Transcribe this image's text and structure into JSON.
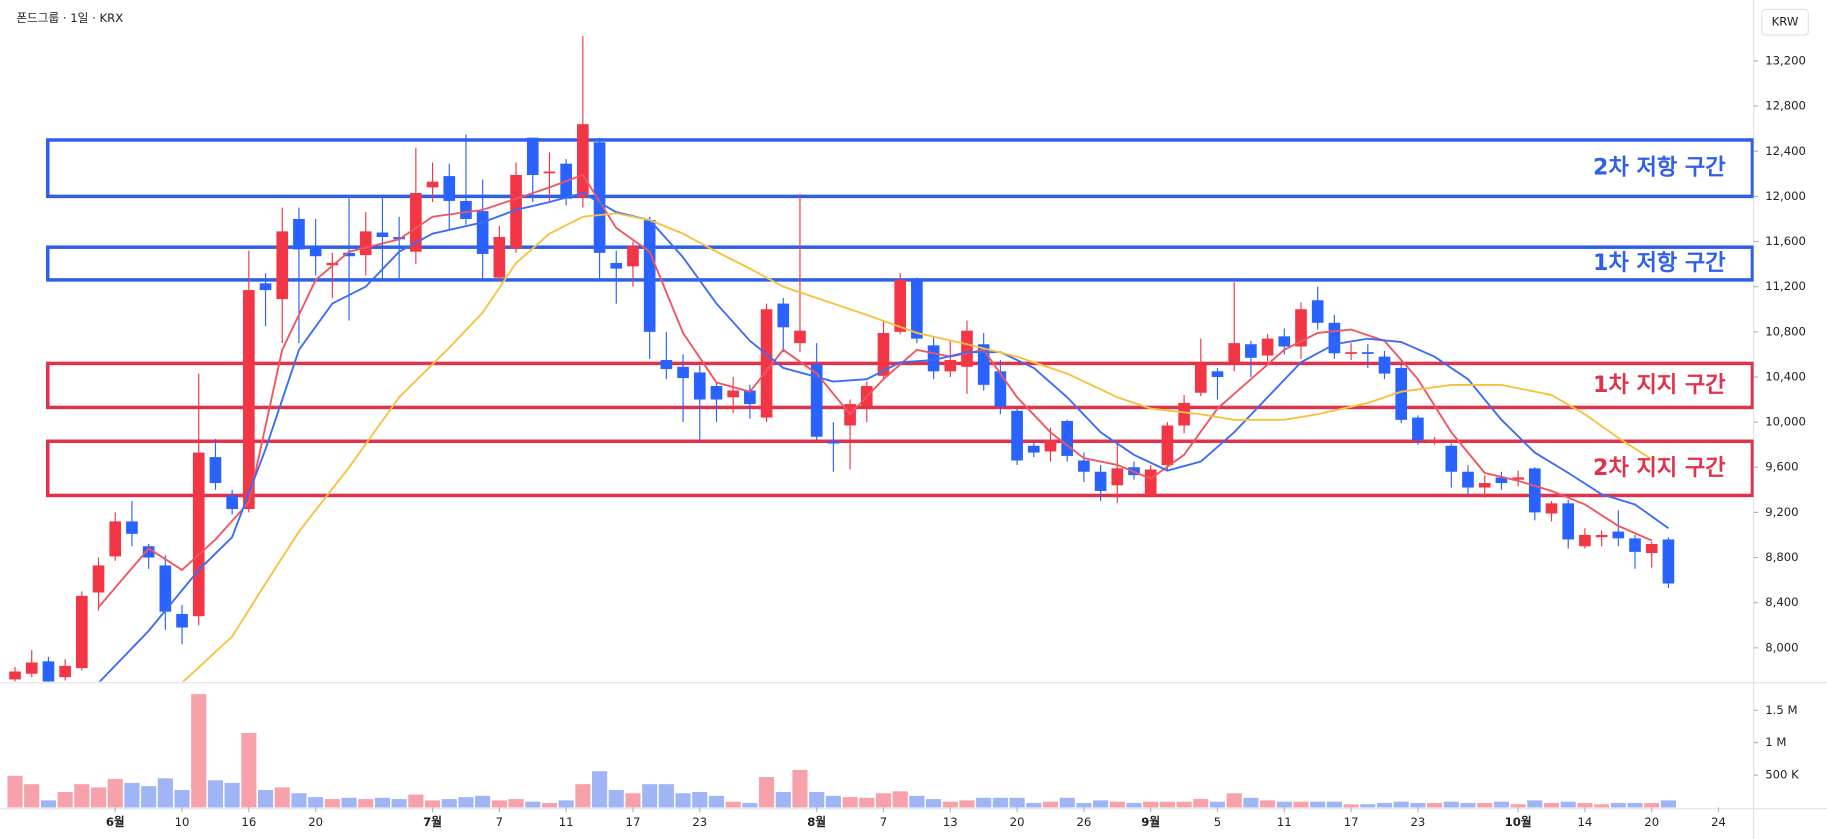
{
  "header": {
    "title": "폰드그룹 · 1일 · KRX",
    "currency": "KRW"
  },
  "chart_data": {
    "type": "candlestick",
    "up_color": "#f23645",
    "down_color": "#2962ff",
    "xlim": [
      -0.9,
      104.1
    ],
    "xticks": [
      {
        "value": 6,
        "label": "6월"
      },
      {
        "value": 10,
        "label": "10"
      },
      {
        "value": 14,
        "label": "16"
      },
      {
        "value": 18,
        "label": "20"
      },
      {
        "value": 25,
        "label": "7월"
      },
      {
        "value": 29,
        "label": "7"
      },
      {
        "value": 33,
        "label": "11"
      },
      {
        "value": 37,
        "label": "17"
      },
      {
        "value": 41,
        "label": "23"
      },
      {
        "value": 48,
        "label": "8월"
      },
      {
        "value": 52,
        "label": "7"
      },
      {
        "value": 56,
        "label": "13"
      },
      {
        "value": 60,
        "label": "20"
      },
      {
        "value": 64,
        "label": "26"
      },
      {
        "value": 68,
        "label": "9월"
      },
      {
        "value": 72,
        "label": "5"
      },
      {
        "value": 76,
        "label": "11"
      },
      {
        "value": 80,
        "label": "17"
      },
      {
        "value": 84,
        "label": "23"
      },
      {
        "value": 90,
        "label": "10월"
      },
      {
        "value": 94,
        "label": "14"
      },
      {
        "value": 98,
        "label": "20"
      },
      {
        "value": 102,
        "label": "24"
      }
    ],
    "ylim": [
      7700,
      13740
    ],
    "yticks": [
      {
        "value": 8000,
        "label": "8,000"
      },
      {
        "value": 8400,
        "label": "8,400"
      },
      {
        "value": 8800,
        "label": "8,800"
      },
      {
        "value": 9200,
        "label": "9,200"
      },
      {
        "value": 9600,
        "label": "9,600"
      },
      {
        "value": 10000,
        "label": "10,000"
      },
      {
        "value": 10400,
        "label": "10,400"
      },
      {
        "value": 10800,
        "label": "10,800"
      },
      {
        "value": 11200,
        "label": "11,200"
      },
      {
        "value": 11600,
        "label": "11,600"
      },
      {
        "value": 12000,
        "label": "12,000"
      },
      {
        "value": 12400,
        "label": "12,400"
      },
      {
        "value": 12800,
        "label": "12,800"
      },
      {
        "value": 13200,
        "label": "13,200"
      }
    ],
    "open": [
      7720,
      7770,
      7880,
      7740,
      7820,
      8490,
      8810,
      9120,
      8900,
      8730,
      8300,
      8280,
      9690,
      9350,
      9230,
      11230,
      11090,
      11800,
      11560,
      11390,
      11500,
      11480,
      11680,
      11640,
      11510,
      12080,
      12180,
      11960,
      11870,
      11280,
      11540,
      12520,
      12210,
      12290,
      11990,
      12480,
      11410,
      11380,
      11790,
      10550,
      10490,
      10440,
      10320,
      10220,
      10280,
      10040,
      11050,
      10700,
      10510,
      9830,
      9970,
      10140,
      10410,
      10800,
      11260,
      10680,
      10450,
      10490,
      10690,
      10450,
      10100,
      9790,
      9740,
      10010,
      9660,
      9560,
      9440,
      9600,
      9350,
      9620,
      9970,
      10260,
      10450,
      10530,
      10690,
      10590,
      10760,
      10670,
      11080,
      10880,
      10610,
      10620,
      10580,
      10480,
      10040,
      9830,
      9790,
      9560,
      9420,
      9510,
      9490,
      9590,
      9190,
      9280,
      8900,
      8980,
      9030,
      8970,
      8840,
      8960
    ],
    "high": [
      7830,
      7980,
      7920,
      7900,
      8500,
      8800,
      9200,
      9300,
      8920,
      8820,
      8380,
      10430,
      9850,
      9400,
      11520,
      11320,
      11900,
      11900,
      11800,
      11500,
      11980,
      11860,
      11990,
      11820,
      12430,
      12300,
      12290,
      12550,
      12150,
      11740,
      12300,
      12520,
      12390,
      12330,
      13420,
      12520,
      11520,
      11600,
      11820,
      10800,
      10600,
      10500,
      10360,
      10400,
      10330,
      11050,
      11100,
      12020,
      10700,
      10000,
      10200,
      10360,
      10900,
      11320,
      11280,
      10760,
      10720,
      10900,
      10790,
      10550,
      10120,
      9830,
      9950,
      10020,
      9730,
      9620,
      9810,
      9650,
      9620,
      10000,
      10240,
      10740,
      10480,
      11240,
      10720,
      10780,
      10830,
      11060,
      11200,
      10950,
      10700,
      10690,
      10630,
      10510,
      10060,
      9870,
      9810,
      9620,
      9530,
      9560,
      9570,
      9600,
      9300,
      9310,
      9060,
      9040,
      9220,
      9000,
      8940,
      8980
    ],
    "low": [
      7700,
      7740,
      7690,
      7710,
      7800,
      8330,
      8770,
      8900,
      8700,
      8160,
      8030,
      8200,
      9400,
      9180,
      9200,
      10850,
      10700,
      10700,
      11300,
      11100,
      10900,
      11300,
      11250,
      11270,
      11400,
      11950,
      11700,
      11750,
      11250,
      11250,
      11500,
      11950,
      11960,
      11920,
      11900,
      11270,
      11050,
      11200,
      10560,
      10380,
      10000,
      9840,
      10000,
      10080,
      10030,
      10000,
      10620,
      10620,
      9840,
      9560,
      9580,
      10000,
      10380,
      10780,
      10700,
      10380,
      10400,
      10250,
      10280,
      10070,
      9620,
      9690,
      9650,
      9650,
      9470,
      9300,
      9280,
      9490,
      9340,
      9570,
      9900,
      10230,
      10200,
      10450,
      10400,
      10540,
      10600,
      10560,
      10820,
      10560,
      10550,
      10480,
      10380,
      9990,
      9800,
      9800,
      9420,
      9360,
      9330,
      9400,
      9430,
      9130,
      9120,
      8880,
      8880,
      8900,
      8900,
      8700,
      8710,
      8530
    ],
    "close": [
      7790,
      7870,
      7700,
      7840,
      8460,
      8730,
      9120,
      9010,
      8800,
      8320,
      8180,
      9730,
      9460,
      9230,
      11170,
      11170,
      11690,
      11530,
      11470,
      11410,
      11470,
      11690,
      11640,
      11620,
      12030,
      12130,
      11960,
      11800,
      11490,
      11640,
      12190,
      12190,
      12220,
      11980,
      12640,
      11500,
      11360,
      11560,
      10800,
      10470,
      10390,
      10200,
      10200,
      10280,
      10160,
      11000,
      10840,
      10810,
      9870,
      9810,
      10160,
      10320,
      10790,
      11260,
      10740,
      10450,
      10550,
      10810,
      10330,
      10140,
      9660,
      9730,
      9840,
      9700,
      9560,
      9390,
      9590,
      9530,
      9580,
      9970,
      10170,
      10510,
      10400,
      10700,
      10570,
      10740,
      10670,
      11000,
      10880,
      10610,
      10620,
      10610,
      10430,
      10020,
      9840,
      9840,
      9560,
      9420,
      9460,
      9460,
      9510,
      9200,
      9280,
      8960,
      9000,
      9000,
      8970,
      8850,
      8920,
      8570
    ],
    "moving_averages": [
      {
        "color": "#f05560",
        "x": [
          5,
          8,
          10,
          12,
          14,
          16,
          18,
          20,
          23,
          25,
          28,
          30,
          32,
          34,
          36,
          38,
          40,
          42,
          44,
          46,
          48,
          50,
          52,
          54,
          56,
          58,
          60,
          62,
          64,
          66,
          68,
          70,
          72,
          74,
          76,
          78,
          80,
          82,
          84,
          86,
          88,
          90,
          92,
          94,
          96,
          98
        ],
        "values": [
          8360,
          8880,
          8690,
          8960,
          9290,
          10640,
          11260,
          11510,
          11620,
          11820,
          11880,
          11980,
          12080,
          12190,
          11720,
          11510,
          10790,
          10350,
          10270,
          10640,
          10430,
          10070,
          10380,
          10640,
          10580,
          10640,
          10220,
          9910,
          9680,
          9620,
          9500,
          9710,
          10120,
          10380,
          10640,
          10790,
          10820,
          10720,
          10380,
          9910,
          9550,
          9480,
          9390,
          9270,
          9080,
          8950
        ]
      },
      {
        "color": "#3a6cf4",
        "x": [
          5,
          8,
          11,
          13,
          15,
          17,
          19,
          21,
          23,
          25,
          28,
          30,
          32,
          34,
          36,
          38,
          40,
          42,
          44,
          46,
          49,
          51,
          53,
          55,
          57,
          59,
          61,
          63,
          65,
          67,
          69,
          71,
          73,
          75,
          77,
          79,
          81,
          83,
          85,
          87,
          89,
          91,
          93,
          95,
          97,
          99
        ],
        "values": [
          7690,
          8150,
          8690,
          8980,
          9760,
          10640,
          11050,
          11200,
          11510,
          11670,
          11770,
          11880,
          11950,
          12030,
          11860,
          11790,
          11460,
          11050,
          10720,
          10480,
          10360,
          10380,
          10530,
          10550,
          10620,
          10620,
          10480,
          10220,
          9910,
          9710,
          9570,
          9650,
          9910,
          10220,
          10530,
          10690,
          10740,
          10710,
          10580,
          10380,
          10020,
          9730,
          9550,
          9360,
          9270,
          9060
        ]
      },
      {
        "color": "#f7c13d",
        "x": [
          10,
          13,
          15,
          17,
          20,
          23,
          26,
          28,
          30,
          32,
          34,
          36,
          38,
          40,
          42,
          44,
          46,
          48,
          51,
          54,
          57,
          60,
          63,
          66,
          68,
          71,
          73,
          76,
          78,
          81,
          83,
          86,
          89,
          92,
          94,
          96,
          98
        ],
        "values": [
          7690,
          8100,
          8570,
          9030,
          9600,
          10220,
          10660,
          10970,
          11410,
          11670,
          11820,
          11850,
          11790,
          11670,
          11510,
          11360,
          11200,
          11100,
          10950,
          10790,
          10690,
          10580,
          10430,
          10220,
          10120,
          10070,
          10020,
          10020,
          10070,
          10170,
          10270,
          10330,
          10330,
          10240,
          10070,
          9860,
          9670
        ]
      }
    ],
    "zones": [
      {
        "label": "2차 저항 구간",
        "top": 12500,
        "bottom": 12000,
        "color": "#2f5fe8"
      },
      {
        "label": "1차 저항 구간",
        "top": 11550,
        "bottom": 11260,
        "color": "#2f5fe8"
      },
      {
        "label": "1차 지지 구간",
        "top": 10520,
        "bottom": 10130,
        "color": "#e0324a"
      },
      {
        "label": "2차 지지 구간",
        "top": 9830,
        "bottom": 9350,
        "color": "#e0324a"
      }
    ],
    "volume": {
      "up_color": "#f7a1aa",
      "down_color": "#9fb5f6",
      "ylim": [
        0,
        1870000
      ],
      "yticks": [
        {
          "value": 500000,
          "label": "500 K"
        },
        {
          "value": 1000000,
          "label": "1 M"
        },
        {
          "value": 1500000,
          "label": "1.5 M"
        }
      ],
      "values": [
        490000,
        360000,
        110000,
        240000,
        360000,
        310000,
        440000,
        380000,
        330000,
        450000,
        270000,
        1750000,
        420000,
        380000,
        1150000,
        270000,
        310000,
        220000,
        160000,
        130000,
        150000,
        130000,
        150000,
        130000,
        200000,
        110000,
        130000,
        160000,
        180000,
        110000,
        130000,
        90000,
        70000,
        110000,
        360000,
        560000,
        270000,
        220000,
        360000,
        360000,
        220000,
        240000,
        180000,
        90000,
        70000,
        470000,
        240000,
        580000,
        240000,
        180000,
        160000,
        150000,
        220000,
        250000,
        180000,
        130000,
        90000,
        110000,
        150000,
        150000,
        150000,
        70000,
        90000,
        150000,
        70000,
        110000,
        90000,
        70000,
        90000,
        90000,
        90000,
        130000,
        90000,
        220000,
        150000,
        110000,
        90000,
        90000,
        90000,
        90000,
        50000,
        50000,
        70000,
        90000,
        70000,
        70000,
        90000,
        70000,
        70000,
        90000,
        50000,
        110000,
        70000,
        90000,
        70000,
        50000,
        70000,
        70000,
        70000,
        110000
      ]
    }
  }
}
